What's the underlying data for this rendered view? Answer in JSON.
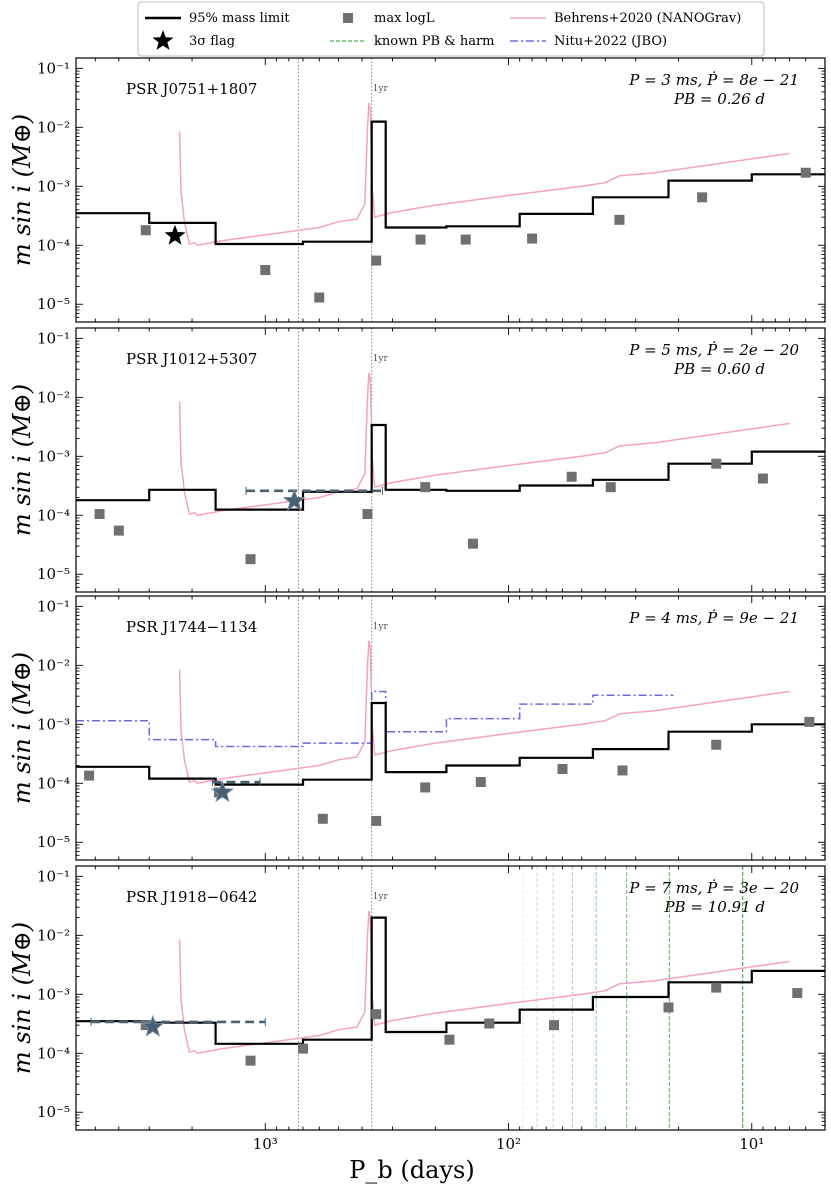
{
  "legend": [
    {
      "label": "95% mass limit",
      "kind": "step",
      "color": "#000000"
    },
    {
      "label": "3σ flag",
      "kind": "star",
      "color": "#000000"
    },
    {
      "label": "max logL",
      "kind": "square",
      "color": "#707070"
    },
    {
      "label": "known PB & harm",
      "kind": "dashed",
      "color": "#4caf50"
    },
    {
      "label": "Behrens+2020 (NANOGrav)",
      "kind": "line",
      "color": "#f5a0c8"
    },
    {
      "label": "Nitu+2022 (JBO)",
      "kind": "dashdot",
      "color": "#6a6adc"
    }
  ],
  "xlabel": "P_b (days)",
  "ylabel": "m sin i (M⊕)",
  "x_ticks": [
    {
      "value": 1000,
      "label": "10³"
    },
    {
      "value": 100,
      "label": "10²"
    },
    {
      "value": 10,
      "label": "10¹"
    }
  ],
  "y_ticks": [
    {
      "value": 1e-05,
      "label": "10⁻⁵"
    },
    {
      "value": 0.0001,
      "label": "10⁻⁴"
    },
    {
      "value": 0.001,
      "label": "10⁻³"
    },
    {
      "value": 0.01,
      "label": "10⁻²"
    },
    {
      "value": 0.1,
      "label": "10⁻¹"
    }
  ],
  "one_year_label": "1yr",
  "colors": {
    "limit": "#000000",
    "maxlogl": "#707070",
    "behrens": "#f5a0c8",
    "nitu": "#6a6adc",
    "known_pb": "#4caf50",
    "flag_fill": "#4a6072",
    "vline": "#888888"
  },
  "chart_data": [
    {
      "type": "line",
      "pulsar": "PSR J0751+1807",
      "params_line1": "P = 3 ms, Ṗ = 8e − 21",
      "params_line2": "PB = 0.26 d",
      "xlim": [
        6000,
        5
      ],
      "ylim": [
        5e-06,
        0.15
      ],
      "xscale": "log-reversed",
      "yscale": "log",
      "vlines": [
        730.5,
        365.25
      ],
      "limit_steps": {
        "edges": [
          6000,
          3000,
          1600,
          700,
          365.25,
          320,
          180,
          90,
          45,
          22,
          10,
          5
        ],
        "values": [
          0.00035,
          0.00024,
          0.000105,
          0.000115,
          0.0125,
          0.0002,
          0.00021,
          0.00034,
          0.00065,
          0.00125,
          0.0016
        ]
      },
      "max_logl": [
        {
          "x": 3100,
          "y": 0.00018
        },
        {
          "x": 1000,
          "y": 3.8e-05
        },
        {
          "x": 600,
          "y": 1.3e-05
        },
        {
          "x": 350,
          "y": 5.5e-05
        },
        {
          "x": 230,
          "y": 0.000125
        },
        {
          "x": 150,
          "y": 0.000125
        },
        {
          "x": 80,
          "y": 0.00013
        },
        {
          "x": 35,
          "y": 0.00027
        },
        {
          "x": 16,
          "y": 0.00065
        },
        {
          "x": 6,
          "y": 0.0017
        }
      ],
      "flags": [
        {
          "x": 2350,
          "y": 0.000145,
          "style": "black"
        }
      ],
      "flag_range": null,
      "nitu_steps": null,
      "known_pb": []
    },
    {
      "type": "line",
      "pulsar": "PSR J1012+5307",
      "params_line1": "P = 5 ms, Ṗ = 2e − 20",
      "params_line2": "PB = 0.60 d",
      "xlim": [
        6000,
        5
      ],
      "ylim": [
        5e-06,
        0.15
      ],
      "xscale": "log-reversed",
      "yscale": "log",
      "vlines": [
        730.5,
        365.25
      ],
      "limit_steps": {
        "edges": [
          6000,
          3000,
          1600,
          700,
          365.25,
          320,
          180,
          90,
          45,
          22,
          10,
          5
        ],
        "values": [
          0.00018,
          0.00027,
          0.000125,
          0.00025,
          0.0034,
          0.00027,
          0.00026,
          0.00032,
          0.0004,
          0.00075,
          0.0012
        ]
      },
      "max_logl": [
        {
          "x": 4800,
          "y": 0.000105
        },
        {
          "x": 4000,
          "y": 5.5e-05
        },
        {
          "x": 1150,
          "y": 1.8e-05
        },
        {
          "x": 380,
          "y": 0.000105
        },
        {
          "x": 220,
          "y": 0.0003
        },
        {
          "x": 140,
          "y": 3.3e-05
        },
        {
          "x": 55,
          "y": 0.00045
        },
        {
          "x": 38,
          "y": 0.0003
        },
        {
          "x": 14,
          "y": 0.00075
        },
        {
          "x": 9,
          "y": 0.00042
        }
      ],
      "flags": [
        {
          "x": 760,
          "y": 0.000175,
          "style": "filled"
        }
      ],
      "flag_range": {
        "x1": 1200,
        "x2": 330,
        "y": 0.00026
      },
      "nitu_steps": null,
      "known_pb": []
    },
    {
      "type": "line",
      "pulsar": "PSR J1744−1134",
      "params_line1": "P = 4 ms, Ṗ = 9e − 21",
      "params_line2": "",
      "xlim": [
        6000,
        5
      ],
      "ylim": [
        5e-06,
        0.15
      ],
      "xscale": "log-reversed",
      "yscale": "log",
      "vlines": [
        730.5,
        365.25
      ],
      "limit_steps": {
        "edges": [
          6000,
          3000,
          1600,
          700,
          365.25,
          320,
          180,
          90,
          45,
          22,
          10,
          5
        ],
        "values": [
          0.00019,
          0.00012,
          9.5e-05,
          0.000115,
          0.0023,
          0.000155,
          0.0002,
          0.00027,
          0.00038,
          0.00075,
          0.001
        ]
      },
      "max_logl": [
        {
          "x": 5300,
          "y": 0.000135
        },
        {
          "x": 1550,
          "y": 7e-05
        },
        {
          "x": 580,
          "y": 2.5e-05
        },
        {
          "x": 350,
          "y": 2.3e-05
        },
        {
          "x": 220,
          "y": 8.5e-05
        },
        {
          "x": 130,
          "y": 0.000105
        },
        {
          "x": 60,
          "y": 0.000175
        },
        {
          "x": 34,
          "y": 0.000165
        },
        {
          "x": 14,
          "y": 0.00045
        },
        {
          "x": 5.8,
          "y": 0.0011
        }
      ],
      "flags": [
        {
          "x": 1500,
          "y": 7e-05,
          "style": "filled"
        }
      ],
      "flag_range": {
        "x1": 1650,
        "x2": 1050,
        "y": 0.000105
      },
      "nitu_steps": {
        "edges": [
          6000,
          3000,
          1600,
          700,
          365.25,
          320,
          180,
          90,
          45,
          21
        ],
        "values": [
          0.00115,
          0.00055,
          0.00042,
          0.00048,
          0.0036,
          0.00075,
          0.00125,
          0.0022,
          0.0031
        ]
      },
      "known_pb": []
    },
    {
      "type": "line",
      "pulsar": "PSR J1918−0642",
      "params_line1": "P = 7 ms, Ṗ = 3e − 20",
      "params_line2": "PB = 10.91 d",
      "xlim": [
        6000,
        5
      ],
      "ylim": [
        5e-06,
        0.15
      ],
      "xscale": "log-reversed",
      "yscale": "log",
      "vlines": [
        730.5,
        365.25
      ],
      "limit_steps": {
        "edges": [
          6000,
          3000,
          1600,
          700,
          365.25,
          320,
          180,
          90,
          45,
          22,
          10,
          5
        ],
        "values": [
          0.00035,
          0.00033,
          0.000145,
          0.00017,
          0.02,
          0.00023,
          0.00033,
          0.00055,
          0.0009,
          0.0016,
          0.0025
        ]
      },
      "max_logl": [
        {
          "x": 3100,
          "y": 0.0003
        },
        {
          "x": 1150,
          "y": 7.5e-05
        },
        {
          "x": 700,
          "y": 0.00012
        },
        {
          "x": 350,
          "y": 0.00046
        },
        {
          "x": 175,
          "y": 0.00017
        },
        {
          "x": 120,
          "y": 0.00032
        },
        {
          "x": 65,
          "y": 0.0003
        },
        {
          "x": 22,
          "y": 0.0006
        },
        {
          "x": 14,
          "y": 0.0013
        },
        {
          "x": 6.5,
          "y": 0.00105
        }
      ],
      "flags": [
        {
          "x": 2900,
          "y": 0.00028,
          "style": "filled"
        }
      ],
      "flag_range": {
        "x1": 5200,
        "x2": 1000,
        "y": 0.00034
      },
      "nitu_steps": null,
      "known_pb": [
        {
          "x": 87.3,
          "alpha": 0.15
        },
        {
          "x": 76.4,
          "alpha": 0.25
        },
        {
          "x": 65.5,
          "alpha": 0.35
        },
        {
          "x": 54.6,
          "alpha": 0.45
        },
        {
          "x": 43.6,
          "alpha": 0.55
        },
        {
          "x": 32.7,
          "alpha": 0.7
        },
        {
          "x": 21.8,
          "alpha": 0.85
        },
        {
          "x": 10.9,
          "alpha": 1.0
        }
      ]
    }
  ],
  "behrens_curve": [
    [
      2250,
      0.0085
    ],
    [
      2220,
      0.0008
    ],
    [
      2150,
      0.00025
    ],
    [
      2050,
      0.000105
    ],
    [
      1950,
      0.00011
    ],
    [
      1900,
      0.0001
    ],
    [
      1500,
      0.00012
    ],
    [
      1000,
      0.00015
    ],
    [
      600,
      0.0002
    ],
    [
      500,
      0.00025
    ],
    [
      420,
      0.00028
    ],
    [
      390,
      0.0005
    ],
    [
      380,
      0.01
    ],
    [
      375,
      0.026
    ],
    [
      370,
      0.02
    ],
    [
      363,
      0.0009
    ],
    [
      355,
      0.0003
    ],
    [
      300,
      0.00036
    ],
    [
      200,
      0.00048
    ],
    [
      100,
      0.0007
    ],
    [
      50,
      0.001
    ],
    [
      40,
      0.00115
    ],
    [
      35,
      0.0015
    ],
    [
      25,
      0.0017
    ],
    [
      15,
      0.0023
    ],
    [
      7,
      0.0036
    ]
  ]
}
